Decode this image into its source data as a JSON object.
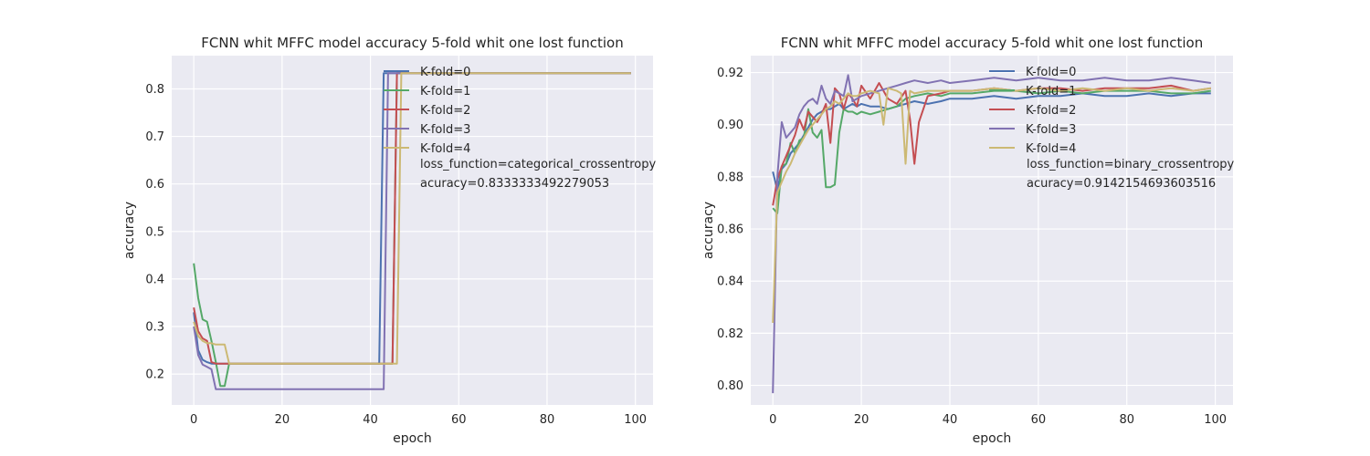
{
  "chart_data": [
    {
      "type": "line",
      "title": "FCNN whit MFFC model accuracy 5-fold whit one lost function",
      "xlabel": "epoch",
      "ylabel": "accuracy",
      "xlim": [
        -5,
        104
      ],
      "ylim": [
        0.135,
        0.87
      ],
      "xticks": [
        0,
        20,
        40,
        60,
        80,
        100
      ],
      "yticks": [
        0.2,
        0.3,
        0.4,
        0.5,
        0.6,
        0.7,
        0.8
      ],
      "tick_labels_y": [
        "0.2",
        "0.3",
        "0.4",
        "0.5",
        "0.6",
        "0.7",
        "0.8"
      ],
      "tick_labels_x": [
        "0",
        "20",
        "40",
        "60",
        "80",
        "100"
      ],
      "grid": true,
      "legend_position": "upper-right",
      "annotations": [
        "loss_function=categorical_crossentropy",
        "acuracy=0.8333333492279053"
      ],
      "series": [
        {
          "name": "K-fold=0",
          "color": "#4c72b0",
          "x": [
            0,
            1,
            2,
            3,
            4,
            5,
            6,
            7,
            8,
            42,
            43,
            99
          ],
          "y": [
            0.33,
            0.25,
            0.23,
            0.225,
            0.222,
            0.222,
            0.222,
            0.222,
            0.222,
            0.222,
            0.833,
            0.833
          ]
        },
        {
          "name": "K-fold=1",
          "color": "#55a868",
          "x": [
            0,
            1,
            2,
            3,
            4,
            5,
            6,
            7,
            8,
            45,
            46,
            99
          ],
          "y": [
            0.433,
            0.36,
            0.315,
            0.31,
            0.27,
            0.225,
            0.175,
            0.175,
            0.222,
            0.222,
            0.833,
            0.833
          ]
        },
        {
          "name": "K-fold=2",
          "color": "#c44e52",
          "x": [
            0,
            1,
            2,
            3,
            4,
            5,
            6,
            7,
            8,
            45,
            46,
            99
          ],
          "y": [
            0.34,
            0.29,
            0.275,
            0.27,
            0.225,
            0.222,
            0.222,
            0.222,
            0.222,
            0.222,
            0.833,
            0.833
          ]
        },
        {
          "name": "K-fold=3",
          "color": "#8172b2",
          "x": [
            0,
            1,
            2,
            3,
            4,
            5,
            6,
            43,
            44,
            99
          ],
          "y": [
            0.3,
            0.24,
            0.22,
            0.215,
            0.21,
            0.168,
            0.168,
            0.168,
            0.833,
            0.833
          ]
        },
        {
          "name": "K-fold=4",
          "color": "#ccb974",
          "x": [
            0,
            1,
            2,
            3,
            4,
            5,
            6,
            7,
            8,
            46,
            47,
            99
          ],
          "y": [
            0.31,
            0.28,
            0.27,
            0.265,
            0.265,
            0.262,
            0.262,
            0.262,
            0.222,
            0.222,
            0.833,
            0.833
          ]
        }
      ]
    },
    {
      "type": "line",
      "title": "FCNN whit MFFC model accuracy 5-fold whit one lost function",
      "xlabel": "epoch",
      "ylabel": "accuracy",
      "xlim": [
        -5,
        104
      ],
      "ylim": [
        0.7925,
        0.9265
      ],
      "xticks": [
        0,
        20,
        40,
        60,
        80,
        100
      ],
      "yticks": [
        0.8,
        0.82,
        0.84,
        0.86,
        0.88,
        0.9,
        0.92
      ],
      "tick_labels_y": [
        "0.80",
        "0.82",
        "0.84",
        "0.86",
        "0.88",
        "0.90",
        "0.92"
      ],
      "tick_labels_x": [
        "0",
        "20",
        "40",
        "60",
        "80",
        "100"
      ],
      "grid": true,
      "legend_position": "upper-right",
      "annotations": [
        "loss_function=binary_crossentropy",
        "acuracy=0.9142154693603516"
      ],
      "series": [
        {
          "name": "K-fold=0",
          "color": "#4c72b0",
          "x": [
            0,
            1,
            2,
            3,
            4,
            5,
            6,
            7,
            8,
            9,
            10,
            11,
            12,
            13,
            14,
            15,
            16,
            17,
            18,
            19,
            20,
            22,
            24,
            26,
            28,
            30,
            32,
            35,
            38,
            40,
            45,
            50,
            55,
            60,
            65,
            70,
            75,
            80,
            85,
            90,
            95,
            99
          ],
          "y": [
            0.882,
            0.875,
            0.883,
            0.885,
            0.889,
            0.891,
            0.893,
            0.896,
            0.899,
            0.902,
            0.904,
            0.905,
            0.906,
            0.906,
            0.907,
            0.908,
            0.906,
            0.907,
            0.908,
            0.907,
            0.908,
            0.907,
            0.907,
            0.906,
            0.907,
            0.908,
            0.909,
            0.908,
            0.909,
            0.91,
            0.91,
            0.911,
            0.91,
            0.911,
            0.911,
            0.912,
            0.911,
            0.911,
            0.912,
            0.911,
            0.912,
            0.912
          ]
        },
        {
          "name": "K-fold=1",
          "color": "#55a868",
          "x": [
            0,
            1,
            2,
            3,
            4,
            5,
            6,
            7,
            8,
            9,
            10,
            11,
            12,
            13,
            14,
            15,
            16,
            17,
            18,
            19,
            20,
            22,
            24,
            26,
            28,
            30,
            32,
            35,
            38,
            40,
            45,
            50,
            55,
            60,
            65,
            70,
            75,
            80,
            85,
            90,
            95,
            99
          ],
          "y": [
            0.868,
            0.866,
            0.884,
            0.885,
            0.893,
            0.889,
            0.894,
            0.895,
            0.906,
            0.897,
            0.895,
            0.898,
            0.876,
            0.876,
            0.877,
            0.897,
            0.906,
            0.905,
            0.905,
            0.904,
            0.905,
            0.904,
            0.905,
            0.906,
            0.907,
            0.91,
            0.911,
            0.912,
            0.911,
            0.912,
            0.912,
            0.913,
            0.913,
            0.912,
            0.913,
            0.912,
            0.913,
            0.913,
            0.913,
            0.912,
            0.912,
            0.913
          ]
        },
        {
          "name": "K-fold=2",
          "color": "#c44e52",
          "x": [
            0,
            1,
            2,
            3,
            4,
            5,
            6,
            7,
            8,
            9,
            10,
            11,
            12,
            13,
            14,
            15,
            16,
            17,
            18,
            19,
            20,
            22,
            24,
            26,
            28,
            30,
            31,
            32,
            33,
            35,
            38,
            40,
            45,
            50,
            55,
            60,
            65,
            70,
            75,
            80,
            85,
            90,
            95,
            99
          ],
          "y": [
            0.869,
            0.879,
            0.884,
            0.888,
            0.892,
            0.896,
            0.902,
            0.898,
            0.905,
            0.903,
            0.901,
            0.904,
            0.908,
            0.893,
            0.914,
            0.912,
            0.906,
            0.912,
            0.91,
            0.907,
            0.915,
            0.91,
            0.916,
            0.91,
            0.908,
            0.913,
            0.902,
            0.885,
            0.901,
            0.911,
            0.912,
            0.913,
            0.913,
            0.914,
            0.913,
            0.914,
            0.914,
            0.913,
            0.914,
            0.914,
            0.914,
            0.915,
            0.913,
            0.914
          ]
        },
        {
          "name": "K-fold=3",
          "color": "#8172b2",
          "x": [
            0,
            1,
            2,
            3,
            4,
            5,
            6,
            7,
            8,
            9,
            10,
            11,
            12,
            13,
            14,
            15,
            16,
            17,
            18,
            19,
            20,
            22,
            24,
            26,
            28,
            30,
            32,
            35,
            38,
            40,
            45,
            50,
            55,
            60,
            65,
            70,
            75,
            80,
            85,
            90,
            95,
            99
          ],
          "y": [
            0.797,
            0.88,
            0.901,
            0.895,
            0.897,
            0.899,
            0.904,
            0.907,
            0.909,
            0.91,
            0.908,
            0.915,
            0.91,
            0.908,
            0.913,
            0.912,
            0.911,
            0.919,
            0.909,
            0.91,
            0.911,
            0.912,
            0.913,
            0.914,
            0.915,
            0.916,
            0.917,
            0.916,
            0.917,
            0.916,
            0.917,
            0.918,
            0.917,
            0.918,
            0.917,
            0.917,
            0.918,
            0.917,
            0.917,
            0.918,
            0.917,
            0.916
          ]
        },
        {
          "name": "K-fold=4",
          "color": "#ccb974",
          "x": [
            0,
            1,
            2,
            3,
            4,
            5,
            6,
            7,
            8,
            9,
            10,
            11,
            12,
            13,
            14,
            15,
            16,
            17,
            18,
            19,
            20,
            22,
            24,
            25,
            26,
            28,
            29,
            30,
            31,
            32,
            35,
            38,
            40,
            45,
            50,
            55,
            60,
            65,
            70,
            75,
            80,
            85,
            90,
            95,
            99
          ],
          "y": [
            0.824,
            0.874,
            0.878,
            0.882,
            0.885,
            0.889,
            0.892,
            0.895,
            0.898,
            0.9,
            0.902,
            0.904,
            0.906,
            0.907,
            0.909,
            0.908,
            0.91,
            0.912,
            0.911,
            0.911,
            0.912,
            0.913,
            0.912,
            0.9,
            0.914,
            0.913,
            0.912,
            0.885,
            0.913,
            0.912,
            0.913,
            0.913,
            0.913,
            0.913,
            0.914,
            0.913,
            0.914,
            0.913,
            0.914,
            0.913,
            0.914,
            0.913,
            0.914,
            0.913,
            0.914
          ]
        }
      ]
    }
  ]
}
